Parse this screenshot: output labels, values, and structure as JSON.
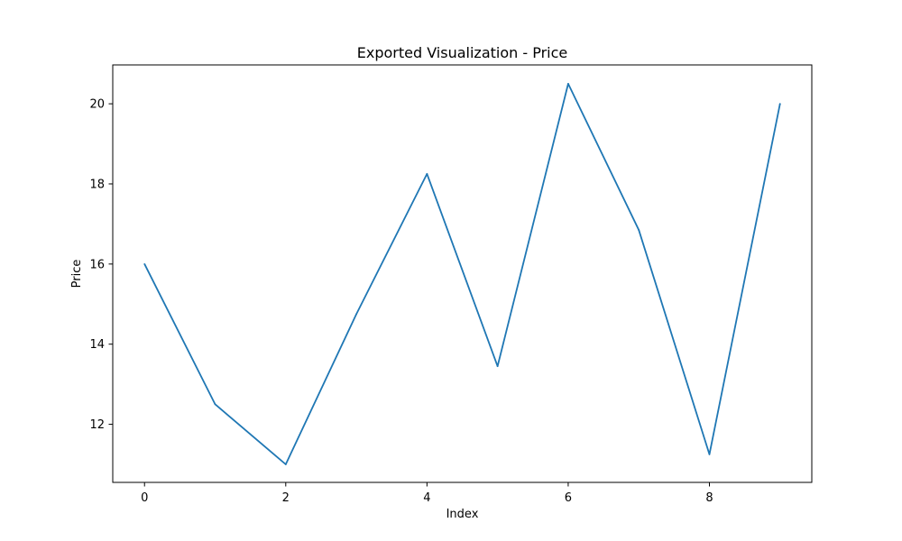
{
  "chart_data": {
    "type": "line",
    "title": "Exported Visualization - Price",
    "xlabel": "Index",
    "ylabel": "Price",
    "x": [
      0,
      1,
      2,
      3,
      4,
      5,
      6,
      7,
      8,
      9
    ],
    "series": [
      {
        "values": [
          16.0,
          12.5,
          11.0,
          14.75,
          18.25,
          13.45,
          20.5,
          16.85,
          11.25,
          20.0
        ],
        "color": "#1f77b4"
      }
    ],
    "xlim": [
      -0.45,
      9.45
    ],
    "ylim": [
      10.55,
      20.97
    ],
    "x_ticks": [
      0,
      2,
      4,
      6,
      8
    ],
    "y_ticks": [
      12,
      14,
      16,
      18,
      20
    ],
    "grid": false,
    "legend": "none"
  }
}
